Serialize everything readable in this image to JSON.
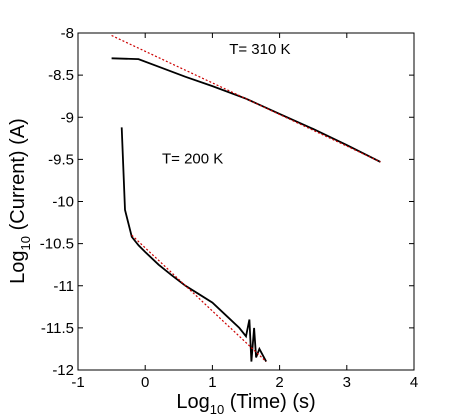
{
  "chart_data": {
    "type": "line",
    "xlabel_main": "Log",
    "xlabel_sub": "10",
    "xlabel_rest": " (Time) (s)",
    "ylabel_main": "Log",
    "ylabel_sub": "10",
    "ylabel_rest": " (Current) (A)",
    "xlim": [
      -1,
      4
    ],
    "ylim": [
      -12,
      -8
    ],
    "xticks": [
      -1,
      0,
      1,
      2,
      3,
      4
    ],
    "xtick_labels": [
      "-1",
      "0",
      "1",
      "2",
      "3",
      "4"
    ],
    "yticks": [
      -8,
      -8.5,
      -9,
      -9.5,
      -10,
      -10.5,
      -11,
      -11.5,
      -12
    ],
    "ytick_labels": [
      "-8",
      "-8.5",
      "-9",
      "-9.5",
      "-10",
      "-10.5",
      "-11",
      "-11.5",
      "-12"
    ],
    "grid": false,
    "annotations": [
      {
        "text": "T= 310 K",
        "x": 1.25,
        "y": -8.25
      },
      {
        "text": "T= 200 K",
        "x": 0.25,
        "y": -9.55
      }
    ],
    "series": [
      {
        "color": "#000000",
        "style": "solid",
        "points": [
          [
            -0.5,
            -8.3
          ],
          [
            -0.1,
            -8.31
          ],
          [
            0.2,
            -8.4
          ],
          [
            0.6,
            -8.52
          ],
          [
            1.0,
            -8.63
          ],
          [
            1.5,
            -8.78
          ],
          [
            2.0,
            -8.96
          ],
          [
            2.5,
            -9.14
          ],
          [
            3.0,
            -9.33
          ],
          [
            3.5,
            -9.53
          ]
        ]
      },
      {
        "color": "#cc0000",
        "style": "dotted",
        "points": [
          [
            -0.5,
            -8.03
          ],
          [
            3.5,
            -9.53
          ]
        ]
      },
      {
        "color": "#000000",
        "style": "solid",
        "points": [
          [
            -0.35,
            -9.12
          ],
          [
            -0.3,
            -10.1
          ],
          [
            -0.2,
            -10.42
          ],
          [
            -0.1,
            -10.52
          ],
          [
            0.0,
            -10.6
          ],
          [
            0.2,
            -10.75
          ],
          [
            0.4,
            -10.88
          ],
          [
            0.6,
            -11.0
          ],
          [
            0.8,
            -11.1
          ],
          [
            1.0,
            -11.2
          ],
          [
            1.2,
            -11.35
          ],
          [
            1.4,
            -11.5
          ],
          [
            1.5,
            -11.6
          ],
          [
            1.55,
            -11.4
          ],
          [
            1.58,
            -11.9
          ],
          [
            1.62,
            -11.5
          ],
          [
            1.65,
            -11.85
          ],
          [
            1.7,
            -11.75
          ],
          [
            1.8,
            -11.9
          ]
        ]
      },
      {
        "color": "#cc0000",
        "style": "dotted",
        "points": [
          [
            -0.2,
            -10.4
          ],
          [
            1.8,
            -11.9
          ]
        ]
      }
    ]
  }
}
